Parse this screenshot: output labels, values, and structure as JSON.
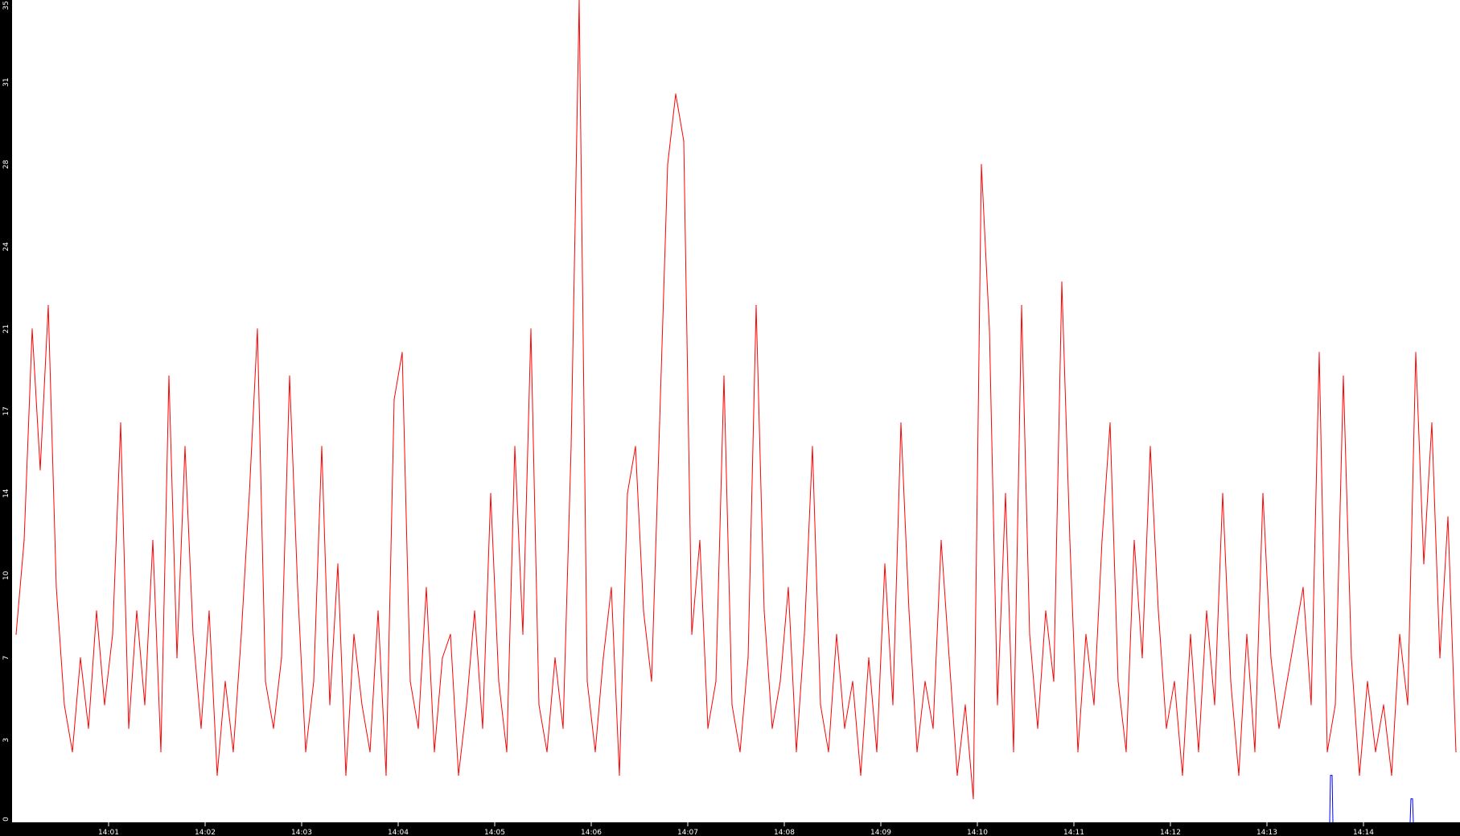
{
  "chart_data": {
    "type": "line",
    "x_start": "14:00:00",
    "x_end": "14:15:00",
    "x_step_seconds": 5,
    "x_tick_labels": [
      "14:01",
      "14:02",
      "14:03",
      "14:04",
      "14:05",
      "14:06",
      "14:07",
      "14:08",
      "14:09",
      "14:10",
      "14:11",
      "14:12",
      "14:13",
      "14:14"
    ],
    "y_tick_labels": [
      "0",
      "3",
      "7",
      "10",
      "14",
      "17",
      "21",
      "24",
      "28",
      "31",
      "35"
    ],
    "ylim": [
      0,
      35
    ],
    "grid": false,
    "legend": "none",
    "background": "#ffffff",
    "axis_background": "#000000",
    "axis_text_color": "#ffffff",
    "series": [
      {
        "color": "#ff0000",
        "values": [
          8,
          12,
          21,
          15,
          22,
          10,
          5,
          3,
          7,
          4,
          9,
          5,
          8,
          17,
          4,
          9,
          5,
          12,
          3,
          19,
          7,
          16,
          8,
          4,
          9,
          2,
          6,
          3,
          8,
          14,
          21,
          6,
          4,
          7,
          19,
          10,
          3,
          6,
          16,
          5,
          11,
          2,
          8,
          5,
          3,
          9,
          2,
          18,
          20,
          6,
          4,
          10,
          3,
          7,
          8,
          2,
          5,
          9,
          4,
          14,
          6,
          3,
          16,
          8,
          21,
          5,
          3,
          7,
          4,
          16,
          35,
          6,
          3,
          7,
          10,
          2,
          14,
          16,
          9,
          6,
          17,
          28,
          31,
          29,
          8,
          12,
          4,
          6,
          19,
          5,
          3,
          7,
          22,
          9,
          4,
          6,
          10,
          3,
          8,
          16,
          5,
          3,
          8,
          4,
          6,
          2,
          7,
          3,
          11,
          5,
          17,
          9,
          3,
          6,
          4,
          12,
          7,
          2,
          5,
          1,
          28,
          21,
          5,
          14,
          3,
          22,
          8,
          4,
          9,
          6,
          23,
          12,
          3,
          8,
          5,
          12,
          17,
          6,
          3,
          12,
          7,
          16,
          9,
          4,
          6,
          2,
          8,
          3,
          9,
          5,
          14,
          6,
          2,
          8,
          3,
          14,
          7,
          4,
          6,
          8,
          10,
          5,
          20,
          3,
          5,
          19,
          7,
          2,
          6,
          3,
          5,
          2,
          8,
          5,
          20,
          11,
          17,
          7,
          13,
          3
        ]
      },
      {
        "color": "#0000ff",
        "points": [
          {
            "t": "14:13:40",
            "v": 2
          },
          {
            "t": "14:14:30",
            "v": 1
          }
        ]
      }
    ]
  }
}
